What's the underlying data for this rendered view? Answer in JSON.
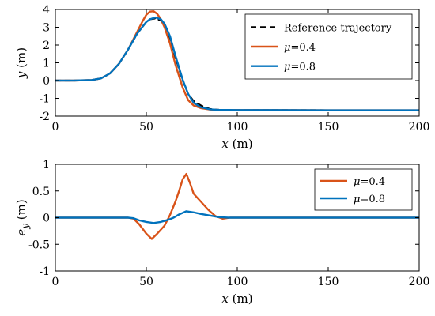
{
  "chart_data": [
    {
      "type": "line",
      "xlabel_var": "x",
      "xlabel_unit": " (m)",
      "ylabel_var": "y",
      "ylabel_unit": " (m)",
      "xlim": [
        0,
        200
      ],
      "ylim": [
        -2,
        4
      ],
      "xticks": [
        0,
        50,
        100,
        150,
        200
      ],
      "yticks": [
        -2,
        -1,
        0,
        1,
        2,
        3,
        4
      ],
      "grid": false,
      "legend_position": "top-right",
      "series": [
        {
          "name": "Reference trajectory",
          "color": "#000000",
          "dash": "7,5",
          "x": [
            0,
            10,
            20,
            25,
            30,
            35,
            40,
            45,
            50,
            52,
            55,
            58,
            60,
            63,
            66,
            70,
            73,
            76,
            80,
            85,
            90,
            100,
            120,
            150,
            200
          ],
          "y": [
            0,
            0,
            0.03,
            0.12,
            0.4,
            0.95,
            1.75,
            2.65,
            3.3,
            3.45,
            3.5,
            3.38,
            3.1,
            2.4,
            1.3,
            0.0,
            -0.75,
            -1.15,
            -1.4,
            -1.6,
            -1.65,
            -1.66,
            -1.66,
            -1.67,
            -1.67
          ]
        },
        {
          "name": "μ=0.4",
          "label_prefix": "μ",
          "label_suffix": "=0.4",
          "color": "#D95319",
          "dash": "",
          "x": [
            0,
            10,
            20,
            25,
            30,
            35,
            40,
            45,
            48,
            50,
            52,
            54,
            56,
            58,
            60,
            63,
            66,
            70,
            73,
            76,
            80,
            85,
            90,
            100,
            120,
            150,
            200
          ],
          "y": [
            0,
            0,
            0.03,
            0.12,
            0.4,
            0.95,
            1.75,
            2.75,
            3.35,
            3.7,
            3.88,
            3.9,
            3.75,
            3.45,
            3.0,
            2.1,
            0.9,
            -0.4,
            -1.1,
            -1.4,
            -1.55,
            -1.63,
            -1.65,
            -1.66,
            -1.66,
            -1.67,
            -1.67
          ]
        },
        {
          "name": "μ=0.8",
          "label_prefix": "μ",
          "label_suffix": "=0.8",
          "color": "#0072BD",
          "dash": "",
          "x": [
            0,
            10,
            20,
            25,
            30,
            35,
            40,
            45,
            50,
            52,
            55,
            58,
            60,
            63,
            66,
            70,
            73,
            76,
            80,
            85,
            90,
            100,
            120,
            150,
            200
          ],
          "y": [
            0,
            0,
            0.03,
            0.12,
            0.4,
            0.95,
            1.75,
            2.65,
            3.3,
            3.45,
            3.55,
            3.45,
            3.2,
            2.5,
            1.4,
            0.05,
            -0.75,
            -1.25,
            -1.5,
            -1.62,
            -1.65,
            -1.66,
            -1.66,
            -1.67,
            -1.67
          ]
        }
      ]
    },
    {
      "type": "line",
      "xlabel_var": "x",
      "xlabel_unit": " (m)",
      "ylabel_var": "e",
      "ylabel_sub": "y",
      "ylabel_unit": " (m)",
      "xlim": [
        0,
        200
      ],
      "ylim": [
        -1,
        1
      ],
      "xticks": [
        0,
        50,
        100,
        150,
        200
      ],
      "yticks": [
        -1,
        -0.5,
        0,
        0.5,
        1
      ],
      "grid": false,
      "legend_position": "top-right",
      "series": [
        {
          "name": "μ=0.4",
          "label_prefix": "μ",
          "label_suffix": "=0.4",
          "color": "#D95319",
          "dash": "",
          "x": [
            0,
            20,
            40,
            43,
            46,
            50,
            53,
            56,
            60,
            63,
            66,
            68,
            70,
            72,
            74,
            76,
            80,
            84,
            88,
            92,
            96,
            100,
            150,
            200
          ],
          "y": [
            0,
            0,
            0,
            -0.02,
            -0.12,
            -0.3,
            -0.4,
            -0.3,
            -0.15,
            0.05,
            0.3,
            0.5,
            0.72,
            0.82,
            0.65,
            0.45,
            0.3,
            0.15,
            0.03,
            -0.02,
            0,
            0,
            0,
            0
          ]
        },
        {
          "name": "μ=0.8",
          "label_prefix": "μ",
          "label_suffix": "=0.8",
          "color": "#0072BD",
          "dash": "",
          "x": [
            0,
            20,
            40,
            43,
            46,
            50,
            54,
            58,
            62,
            65,
            68,
            72,
            76,
            80,
            85,
            90,
            95,
            100,
            150,
            200
          ],
          "y": [
            0,
            0,
            0,
            -0.01,
            -0.05,
            -0.08,
            -0.1,
            -0.08,
            -0.04,
            0.0,
            0.06,
            0.12,
            0.1,
            0.07,
            0.04,
            0.01,
            0,
            0,
            0,
            0
          ]
        }
      ]
    }
  ]
}
